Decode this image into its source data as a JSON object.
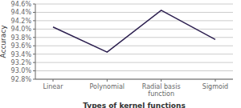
{
  "chart_data": {
    "type": "line",
    "categories": [
      "Linear",
      "Polynomial",
      "Radial basis\nfunction",
      "Sigmoid"
    ],
    "values": [
      94.05,
      93.45,
      94.45,
      93.75
    ],
    "color": "#2d2050",
    "x_label": "Types of kernel functions",
    "y_label": "Accuracy",
    "ylim": [
      92.8,
      94.6
    ],
    "yticks": [
      {
        "value": 92.8,
        "label": "92.8%"
      },
      {
        "value": 93.0,
        "label": "93.0%"
      },
      {
        "value": 93.2,
        "label": "93.2%"
      },
      {
        "value": 93.4,
        "label": "93.4%"
      },
      {
        "value": 93.6,
        "label": "93.6%"
      },
      {
        "value": 93.8,
        "label": "93.8%"
      },
      {
        "value": 94.0,
        "label": "94.0%"
      },
      {
        "value": 94.2,
        "label": "94.2%"
      },
      {
        "value": 94.4,
        "label": "94.4%"
      },
      {
        "value": 94.6,
        "label": "94.6%"
      }
    ],
    "grid": true
  }
}
